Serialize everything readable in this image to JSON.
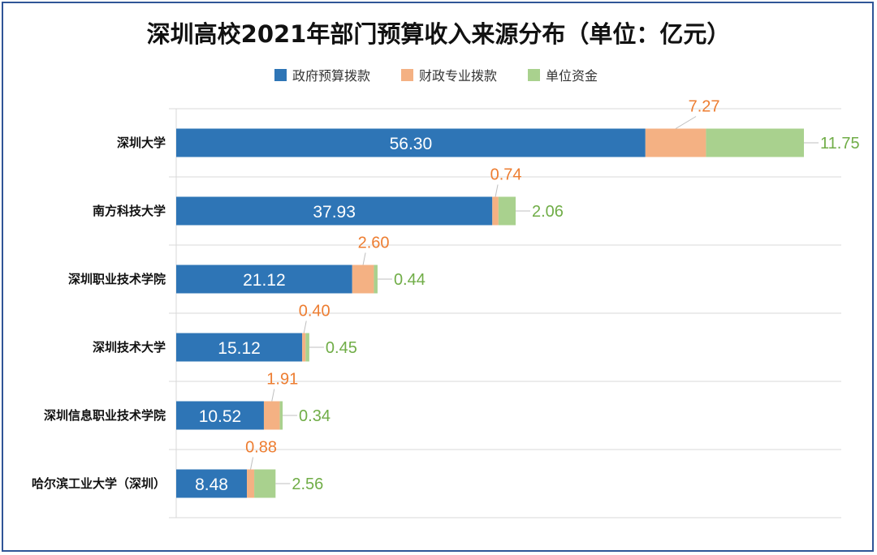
{
  "chart_data": {
    "type": "bar",
    "orientation": "horizontal",
    "stacked": true,
    "title": "深圳高校2021年部门预算收入来源分布（单位：亿元）",
    "categories": [
      "深圳大学",
      "南方科技大学",
      "深圳职业技术学院",
      "深圳技术大学",
      "深圳信息职业技术学院",
      "哈尔滨工业大学（深圳）"
    ],
    "series": [
      {
        "name": "政府预算拨款",
        "color": "#2e75b6",
        "values": [
          56.3,
          37.93,
          21.12,
          15.12,
          10.52,
          8.48
        ],
        "labels": [
          "56.30",
          "37.93",
          "21.12",
          "15.12",
          "10.52",
          "8.48"
        ]
      },
      {
        "name": "财政专业拨款",
        "color": "#f4b183",
        "label_color": "#ed7d31",
        "values": [
          7.27,
          0.74,
          2.6,
          0.4,
          1.91,
          0.88
        ],
        "labels": [
          "7.27",
          "0.74",
          "2.60",
          "0.40",
          "1.91",
          "0.88"
        ]
      },
      {
        "name": "单位资金",
        "color": "#a9d18e",
        "label_color": "#70ad47",
        "values": [
          11.75,
          2.06,
          0.44,
          0.45,
          0.34,
          2.56
        ],
        "labels": [
          "11.75",
          "2.06",
          "0.44",
          "0.45",
          "0.34",
          "2.56"
        ]
      }
    ],
    "xlim": [
      0,
      80
    ],
    "legend_position": "top-center",
    "grid": "horizontal separators"
  }
}
